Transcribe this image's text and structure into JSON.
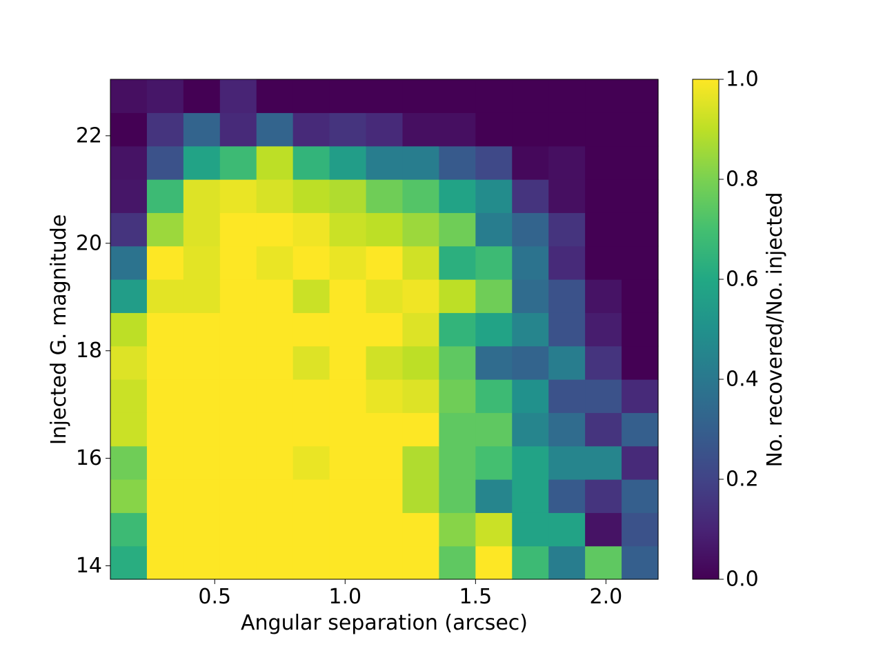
{
  "chart_data": {
    "type": "heatmap",
    "title": "",
    "xlabel": "Angular separation (arcsec)",
    "ylabel": "Injected G. magnitude",
    "colorbar_label": "No. recovered/No. injected",
    "colormap": "viridis",
    "xlim": [
      0.1,
      2.2
    ],
    "ylim": [
      13.75,
      23.05
    ],
    "clim": [
      0.0,
      1.0
    ],
    "x_edges": [
      0.1,
      0.24,
      0.38,
      0.52,
      0.66,
      0.8,
      0.94,
      1.08,
      1.22,
      1.36,
      1.5,
      1.64,
      1.78,
      1.92,
      2.06,
      2.2
    ],
    "y_edges": [
      13.75,
      14.37,
      14.99,
      15.61,
      16.23,
      16.85,
      17.47,
      18.09,
      18.71,
      19.33,
      19.95,
      20.57,
      21.19,
      21.81,
      22.43,
      23.05
    ],
    "x_ticks": [
      0.5,
      1.0,
      1.5,
      2.0
    ],
    "x_tick_labels": [
      "0.5",
      "1.0",
      "1.5",
      "2.0"
    ],
    "y_ticks": [
      14,
      16,
      18,
      20,
      22
    ],
    "y_tick_labels": [
      "14",
      "16",
      "18",
      "20",
      "22"
    ],
    "colorbar_ticks": [
      0.0,
      0.2,
      0.4,
      0.6,
      0.8,
      1.0
    ],
    "colorbar_tick_labels": [
      "0.0",
      "0.2",
      "0.4",
      "0.6",
      "0.8",
      "1.0"
    ],
    "values": [
      [
        0.62,
        1.0,
        1.0,
        1.0,
        1.0,
        1.0,
        1.0,
        1.0,
        1.0,
        0.75,
        1.0,
        0.68,
        0.42,
        0.75,
        0.3
      ],
      [
        0.68,
        1.0,
        1.0,
        1.0,
        1.0,
        1.0,
        1.0,
        1.0,
        1.0,
        0.82,
        0.92,
        0.58,
        0.58,
        0.05,
        0.25
      ],
      [
        0.82,
        1.0,
        1.0,
        1.0,
        1.0,
        1.0,
        1.0,
        1.0,
        0.88,
        0.75,
        0.45,
        0.58,
        0.28,
        0.15,
        0.3
      ],
      [
        0.78,
        1.0,
        1.0,
        1.0,
        1.0,
        0.97,
        1.0,
        1.0,
        0.88,
        0.75,
        0.7,
        0.58,
        0.45,
        0.45,
        0.12
      ],
      [
        0.92,
        1.0,
        1.0,
        1.0,
        1.0,
        1.0,
        1.0,
        1.0,
        1.0,
        0.75,
        0.75,
        0.45,
        0.35,
        0.15,
        0.3
      ],
      [
        0.92,
        1.0,
        1.0,
        1.0,
        1.0,
        1.0,
        1.0,
        0.97,
        0.95,
        0.78,
        0.68,
        0.5,
        0.25,
        0.25,
        0.12
      ],
      [
        0.95,
        1.0,
        1.0,
        1.0,
        1.0,
        0.95,
        1.0,
        0.93,
        0.9,
        0.75,
        0.35,
        0.32,
        0.42,
        0.15,
        0.0
      ],
      [
        0.9,
        1.0,
        1.0,
        1.0,
        1.0,
        1.0,
        1.0,
        1.0,
        0.95,
        0.65,
        0.58,
        0.45,
        0.25,
        0.08,
        0.0
      ],
      [
        0.55,
        0.96,
        0.96,
        1.0,
        1.0,
        0.92,
        1.0,
        0.96,
        0.98,
        0.9,
        0.78,
        0.35,
        0.25,
        0.05,
        0.0
      ],
      [
        0.38,
        1.0,
        0.96,
        1.0,
        0.97,
        1.0,
        0.97,
        1.0,
        0.93,
        0.63,
        0.68,
        0.38,
        0.12,
        0.0,
        0.0
      ],
      [
        0.15,
        0.85,
        0.95,
        1.0,
        1.0,
        0.98,
        0.92,
        0.9,
        0.85,
        0.78,
        0.42,
        0.32,
        0.15,
        0.0,
        0.0
      ],
      [
        0.06,
        0.68,
        0.95,
        0.97,
        0.94,
        0.9,
        0.88,
        0.78,
        0.73,
        0.58,
        0.48,
        0.15,
        0.04,
        0.0,
        0.0
      ],
      [
        0.05,
        0.25,
        0.58,
        0.68,
        0.9,
        0.65,
        0.55,
        0.42,
        0.42,
        0.28,
        0.22,
        0.02,
        0.04,
        0.0,
        0.0
      ],
      [
        0.0,
        0.15,
        0.32,
        0.12,
        0.32,
        0.12,
        0.15,
        0.12,
        0.04,
        0.04,
        0.0,
        0.0,
        0.0,
        0.0,
        0.0
      ],
      [
        0.04,
        0.06,
        0.0,
        0.1,
        0.0,
        0.0,
        0.0,
        0.0,
        0.0,
        0.0,
        0.0,
        0.0,
        0.0,
        0.0,
        0.0
      ]
    ]
  }
}
